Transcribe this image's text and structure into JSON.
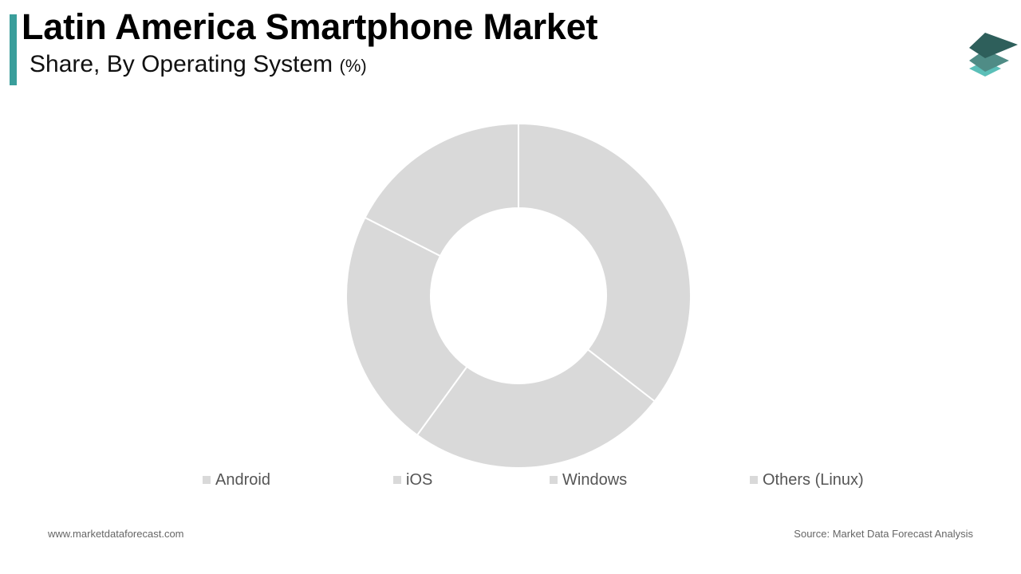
{
  "header": {
    "title": "Latin America Smartphone Market",
    "subtitle": "Share, By Operating System",
    "subtitle_unit": "(%)"
  },
  "logo": {
    "icon": "stacked-layers-logo-icon",
    "colors": [
      "#2e5f5b",
      "#4f8c86",
      "#5bbfb8"
    ]
  },
  "chart_data": {
    "type": "pie",
    "variant": "donut",
    "categories": [
      "Android",
      "iOS",
      "Windows",
      "Others (Linux)"
    ],
    "values": [
      35.5,
      24.5,
      22.5,
      17.5
    ],
    "slice_color": "#d9d9d9",
    "separator_color": "#ffffff",
    "legend": "bottom"
  },
  "footer": {
    "website": "www.marketdataforecast.com",
    "source": "Source: Market Data Forecast Analysis"
  }
}
